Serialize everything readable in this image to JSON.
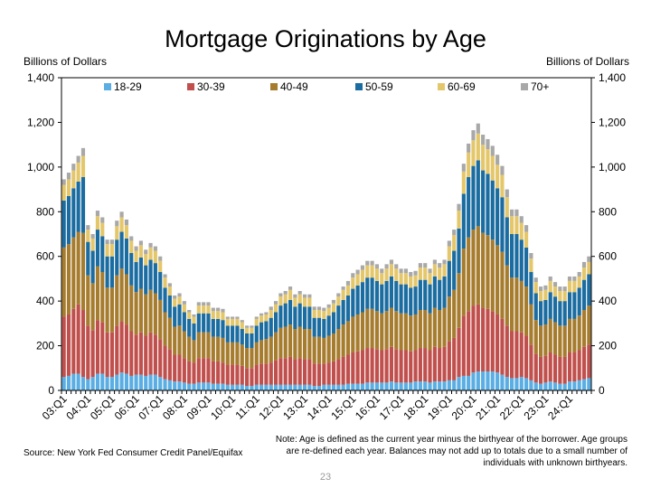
{
  "chart_data": {
    "type": "bar",
    "stacked": true,
    "title": "Mortgage Originations by Age",
    "ylabel_left": "Billions of Dollars",
    "ylabel_right": "Billions of Dollars",
    "ylim": [
      0,
      1400
    ],
    "yticks": [
      "0",
      "200",
      "400",
      "600",
      "800",
      "1,000",
      "1,200",
      "1,400"
    ],
    "ytick_values": [
      0,
      200,
      400,
      600,
      800,
      1000,
      1200,
      1400
    ],
    "xtick_labels": [
      "03:Q1",
      "04:Q1",
      "05:Q1",
      "06:Q1",
      "07:Q1",
      "08:Q1",
      "09:Q1",
      "10:Q1",
      "11:Q1",
      "12:Q1",
      "13:Q1",
      "14:Q1",
      "15:Q1",
      "16:Q1",
      "17:Q1",
      "18:Q1",
      "19:Q1",
      "20:Q1",
      "21:Q1",
      "22:Q1",
      "23:Q1",
      "24:Q1"
    ],
    "start": "2003:Q1",
    "end": "2024:Q2",
    "legend_position": "top",
    "colors": [
      "#5aaee3",
      "#c0504d",
      "#a67c2e",
      "#1b6ca0",
      "#e5c76b",
      "#a8a8a8"
    ],
    "series": [
      {
        "name": "18-29",
        "values": [
          60,
          65,
          75,
          75,
          60,
          50,
          60,
          75,
          75,
          60,
          60,
          70,
          80,
          75,
          65,
          70,
          70,
          65,
          70,
          70,
          60,
          50,
          45,
          40,
          40,
          35,
          30,
          30,
          35,
          35,
          35,
          30,
          30,
          30,
          25,
          25,
          25,
          25,
          20,
          20,
          25,
          25,
          25,
          25,
          25,
          25,
          25,
          25,
          25,
          25,
          25,
          25,
          20,
          20,
          25,
          25,
          25,
          25,
          25,
          30,
          30,
          30,
          30,
          35,
          35,
          35,
          35,
          35,
          40,
          35,
          35,
          35,
          35,
          40,
          40,
          40,
          35,
          40,
          40,
          40,
          45,
          45,
          60,
          65,
          65,
          80,
          85,
          85,
          85,
          85,
          80,
          70,
          60,
          55,
          55,
          60,
          55,
          45,
          35,
          30,
          35,
          40,
          35,
          30,
          30,
          40,
          40,
          45,
          50,
          55
        ]
      },
      {
        "name": "30-39",
        "values": [
          270,
          275,
          290,
          310,
          300,
          240,
          210,
          240,
          230,
          200,
          200,
          220,
          230,
          220,
          200,
          180,
          190,
          180,
          190,
          180,
          170,
          150,
          140,
          120,
          120,
          110,
          100,
          95,
          110,
          110,
          110,
          100,
          100,
          95,
          90,
          90,
          90,
          85,
          80,
          80,
          90,
          95,
          95,
          100,
          110,
          120,
          120,
          125,
          115,
          120,
          115,
          115,
          100,
          100,
          95,
          100,
          105,
          115,
          125,
          130,
          140,
          145,
          150,
          155,
          155,
          150,
          145,
          150,
          155,
          150,
          145,
          145,
          140,
          140,
          150,
          150,
          145,
          155,
          150,
          155,
          175,
          190,
          220,
          270,
          290,
          300,
          300,
          285,
          280,
          270,
          260,
          250,
          230,
          210,
          210,
          200,
          190,
          160,
          130,
          120,
          120,
          130,
          125,
          120,
          120,
          130,
          130,
          135,
          145,
          150
        ]
      },
      {
        "name": "40-49",
        "values": [
          310,
          315,
          320,
          325,
          345,
          225,
          210,
          240,
          225,
          200,
          200,
          225,
          235,
          225,
          205,
          190,
          195,
          185,
          190,
          185,
          175,
          150,
          140,
          125,
          130,
          120,
          110,
          100,
          115,
          115,
          115,
          110,
          110,
          110,
          100,
          100,
          100,
          95,
          90,
          90,
          100,
          105,
          110,
          115,
          125,
          135,
          140,
          145,
          135,
          140,
          135,
          135,
          120,
          120,
          115,
          120,
          125,
          135,
          145,
          150,
          160,
          165,
          170,
          175,
          175,
          170,
          165,
          170,
          175,
          170,
          165,
          165,
          160,
          160,
          170,
          170,
          165,
          175,
          170,
          175,
          200,
          215,
          245,
          300,
          330,
          340,
          350,
          335,
          330,
          320,
          310,
          300,
          270,
          240,
          240,
          230,
          220,
          180,
          150,
          140,
          140,
          150,
          145,
          140,
          140,
          150,
          150,
          155,
          165,
          175
        ]
      },
      {
        "name": "50-59",
        "values": [
          210,
          215,
          220,
          225,
          250,
          150,
          145,
          165,
          160,
          140,
          140,
          160,
          165,
          160,
          145,
          135,
          140,
          130,
          135,
          135,
          125,
          110,
          100,
          90,
          95,
          85,
          80,
          75,
          85,
          85,
          85,
          80,
          80,
          80,
          75,
          75,
          75,
          70,
          65,
          65,
          75,
          80,
          80,
          85,
          90,
          100,
          105,
          110,
          100,
          105,
          100,
          100,
          85,
          85,
          85,
          90,
          95,
          105,
          110,
          115,
          125,
          130,
          135,
          140,
          140,
          135,
          130,
          135,
          140,
          135,
          130,
          130,
          125,
          125,
          135,
          135,
          130,
          140,
          135,
          140,
          160,
          175,
          200,
          245,
          270,
          285,
          295,
          280,
          275,
          265,
          255,
          245,
          215,
          195,
          195,
          185,
          175,
          145,
          120,
          110,
          110,
          120,
          115,
          110,
          110,
          120,
          120,
          125,
          135,
          140
        ]
      },
      {
        "name": "60-69",
        "values": [
          70,
          75,
          80,
          85,
          95,
          55,
          55,
          60,
          60,
          55,
          55,
          60,
          65,
          60,
          55,
          50,
          55,
          50,
          55,
          55,
          50,
          45,
          40,
          35,
          35,
          35,
          30,
          30,
          35,
          35,
          35,
          35,
          35,
          35,
          30,
          30,
          30,
          30,
          25,
          25,
          30,
          30,
          30,
          35,
          35,
          40,
          40,
          45,
          40,
          40,
          40,
          40,
          35,
          35,
          35,
          35,
          40,
          40,
          45,
          45,
          50,
          50,
          55,
          55,
          55,
          55,
          50,
          55,
          55,
          55,
          50,
          50,
          50,
          50,
          55,
          55,
          50,
          55,
          55,
          55,
          65,
          70,
          80,
          100,
          110,
          115,
          120,
          115,
          110,
          110,
          105,
          100,
          90,
          80,
          80,
          75,
          70,
          60,
          50,
          45,
          45,
          50,
          45,
          45,
          45,
          50,
          50,
          50,
          55,
          55
        ]
      },
      {
        "name": "70+",
        "values": [
          25,
          30,
          30,
          30,
          35,
          20,
          20,
          25,
          25,
          20,
          20,
          25,
          25,
          25,
          20,
          20,
          20,
          20,
          20,
          20,
          20,
          15,
          15,
          15,
          15,
          15,
          10,
          10,
          15,
          15,
          15,
          15,
          15,
          15,
          10,
          10,
          10,
          10,
          10,
          10,
          10,
          10,
          10,
          15,
          15,
          15,
          15,
          15,
          15,
          15,
          15,
          15,
          15,
          15,
          15,
          15,
          15,
          15,
          15,
          20,
          20,
          20,
          20,
          20,
          20,
          20,
          20,
          20,
          20,
          20,
          20,
          20,
          20,
          20,
          20,
          20,
          20,
          20,
          20,
          20,
          25,
          25,
          30,
          35,
          40,
          45,
          45,
          45,
          45,
          45,
          45,
          40,
          35,
          30,
          30,
          30,
          30,
          25,
          20,
          20,
          20,
          20,
          20,
          20,
          20,
          20,
          20,
          20,
          25,
          25
        ]
      }
    ]
  },
  "footer": {
    "source": "Source: New York Fed Consumer Credit Panel/Equifax",
    "note": "Note: Age is defined as the current year minus the birthyear of the borrower. Age groups are re-defined each year. Balances may not add up to totals due to a small number of individuals with unknown birthyears.",
    "page_number": "23"
  }
}
